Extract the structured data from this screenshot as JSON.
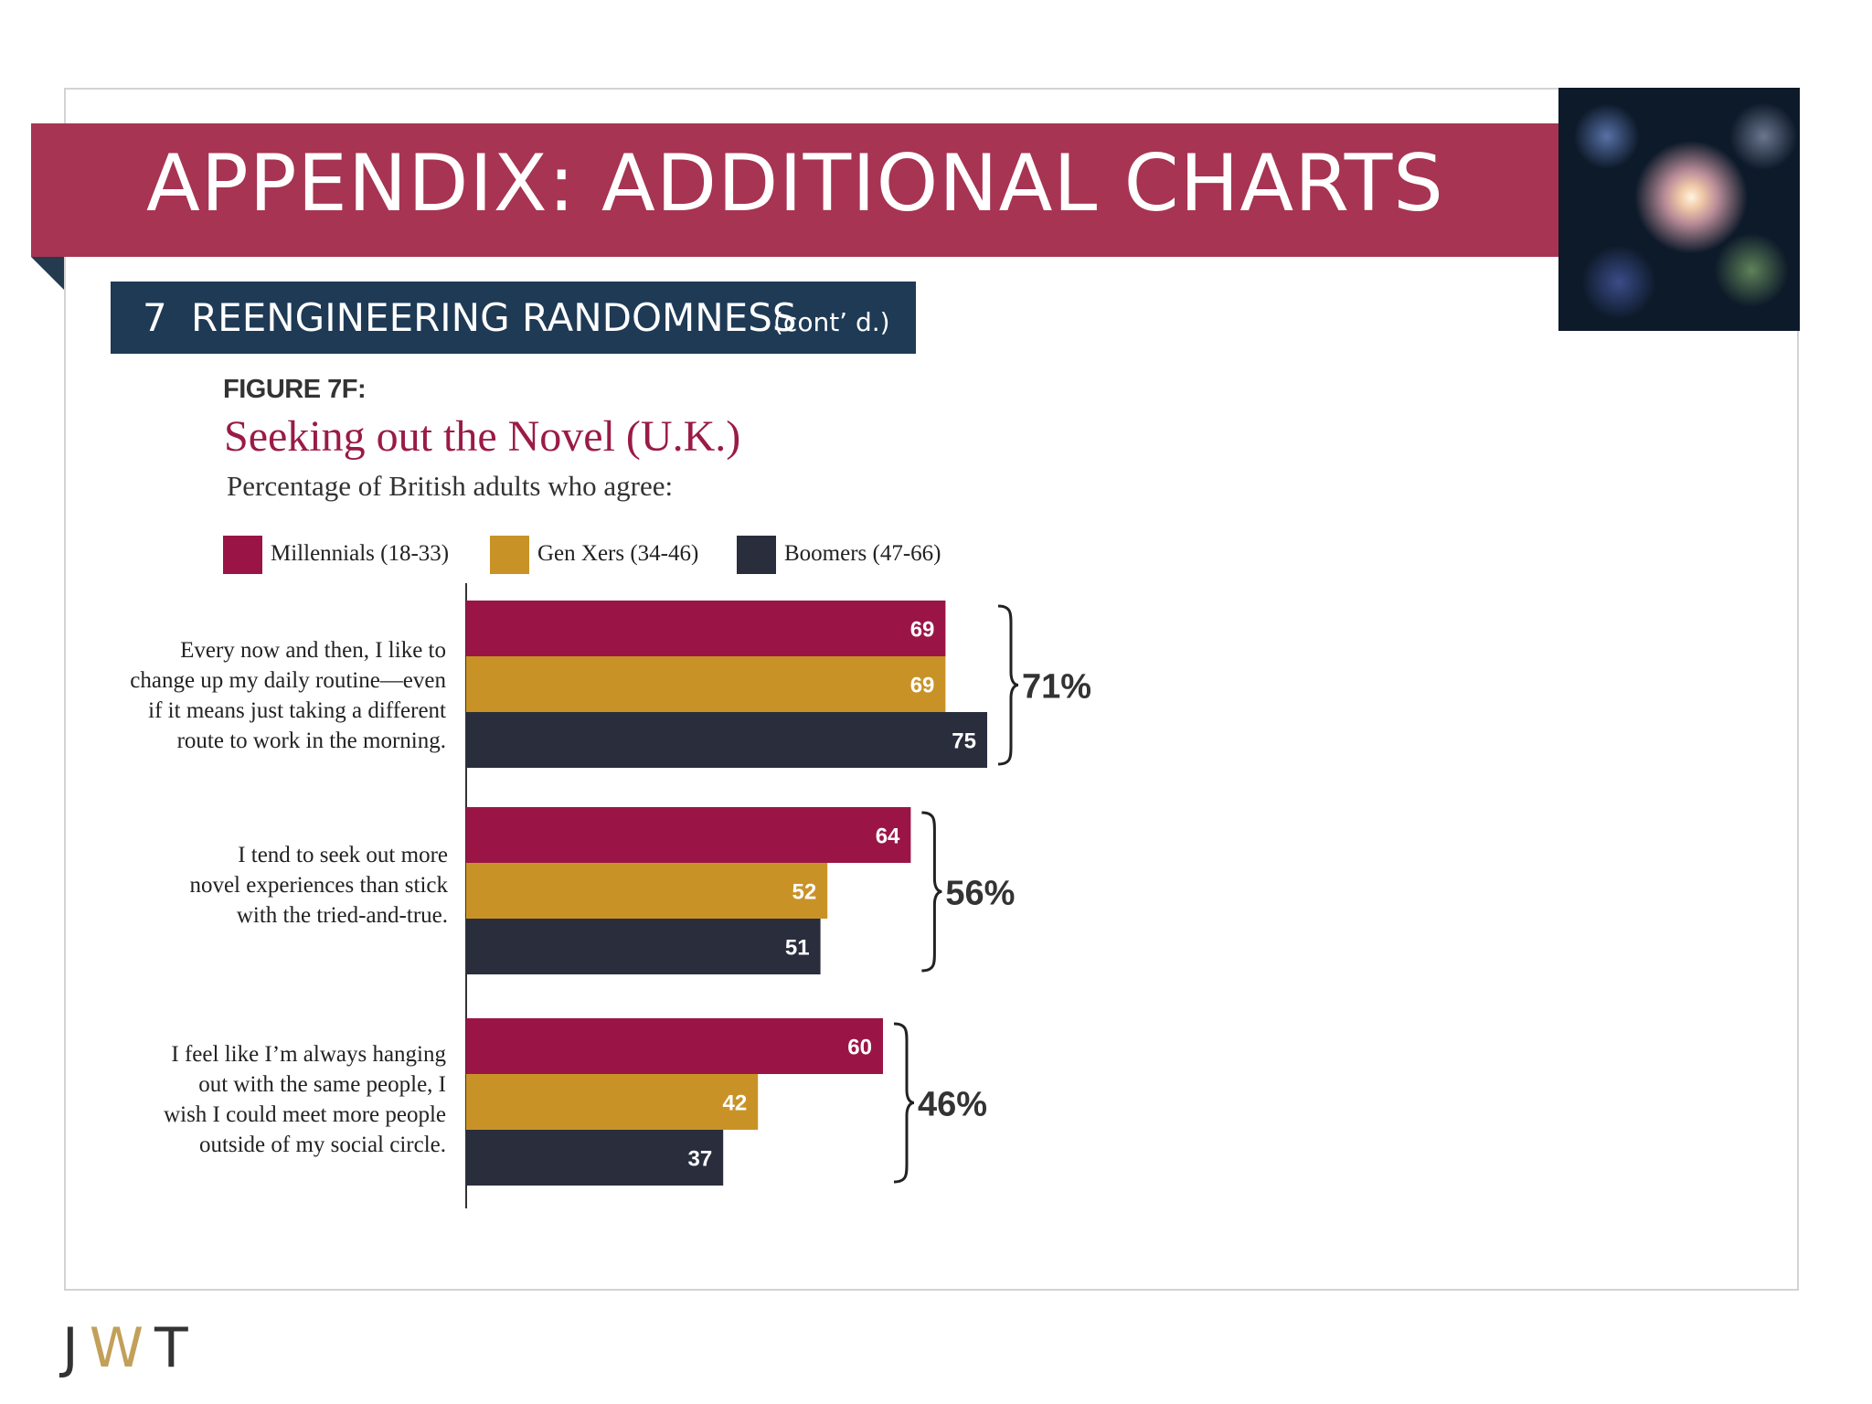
{
  "header": {
    "title": "APPENDIX: ADDITIONAL CHARTS",
    "section_number": "7",
    "section_title": "REENGINEERING RANDOMNESS",
    "section_suffix": "(cont’ d.)"
  },
  "photo": {
    "icon": "fireworks-image"
  },
  "figure": {
    "label": "FIGURE 7F:",
    "title": "Seeking out the Novel (U.K.)",
    "subtitle": "Percentage of British adults who agree:"
  },
  "legend": [
    {
      "label": "Millennials (18-33)",
      "color": "#9a1545"
    },
    {
      "label": "Gen Xers (34-46)",
      "color": "#c99227"
    },
    {
      "label": "Boomers (47-66)",
      "color": "#2a2d3c"
    }
  ],
  "questions": [
    {
      "lines": [
        "Every now and then, I like to",
        "change up my daily routine—even",
        "if it means just taking a different",
        "route to work in the morning."
      ]
    },
    {
      "lines": [
        "I tend to seek out more",
        "novel experiences than stick",
        "with the tried-and-true."
      ]
    },
    {
      "lines": [
        "I feel like I’m always hanging",
        "out with the same people, I",
        "wish I could meet more people",
        "outside of my social circle."
      ]
    }
  ],
  "chart_data": {
    "type": "bar",
    "orientation": "horizontal",
    "categories": [
      "Every now and then, I like to change up my daily routine—even if it means just taking a different route to work in the morning.",
      "I tend to seek out more novel experiences than stick with the tried-and-true.",
      "I feel like I’m always hanging out with the same people, I wish I could meet more people outside of my social circle."
    ],
    "series": [
      {
        "name": "Millennials (18-33)",
        "values": [
          69,
          64,
          60
        ],
        "color": "#9a1545"
      },
      {
        "name": "Gen Xers (34-46)",
        "values": [
          69,
          52,
          42
        ],
        "color": "#c99227"
      },
      {
        "name": "Boomers (47-66)",
        "values": [
          75,
          51,
          37
        ],
        "color": "#2a2d3c"
      }
    ],
    "totals": [
      "71%",
      "56%",
      "46%"
    ],
    "data_labels": true,
    "grid": false,
    "legend_position": "top"
  },
  "footer": {
    "logo_j": "J",
    "logo_w": "W",
    "logo_t": "T"
  }
}
